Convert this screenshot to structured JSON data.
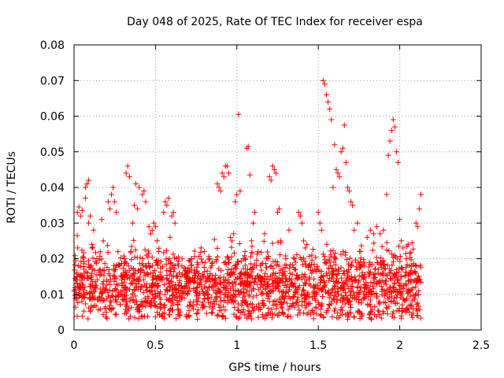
{
  "chart_data": {
    "type": "scatter",
    "title": "Day 048 of 2025, Rate Of TEC Index for receiver espa",
    "xlabel": "GPS time / hours",
    "ylabel": "ROTI / TECUs",
    "xlim": [
      0,
      2.5
    ],
    "ylim": [
      0,
      0.08
    ],
    "x_ticks": [
      {
        "value": 0,
        "label": "0"
      },
      {
        "value": 0.5,
        "label": "0.5"
      },
      {
        "value": 1,
        "label": "1"
      },
      {
        "value": 1.5,
        "label": "1.5"
      },
      {
        "value": 2,
        "label": "2"
      },
      {
        "value": 2.5,
        "label": "2.5"
      }
    ],
    "y_ticks": [
      {
        "value": 0,
        "label": "0"
      },
      {
        "value": 0.01,
        "label": "0.01"
      },
      {
        "value": 0.02,
        "label": "0.02"
      },
      {
        "value": 0.03,
        "label": "0.03"
      },
      {
        "value": 0.04,
        "label": "0.04"
      },
      {
        "value": 0.05,
        "label": "0.05"
      },
      {
        "value": 0.06,
        "label": "0.06"
      },
      {
        "value": 0.07,
        "label": "0.07"
      },
      {
        "value": 0.08,
        "label": "0.08"
      }
    ],
    "grid": true,
    "marker": "+",
    "series": [
      {
        "name": "ROTI",
        "color": "#ff0000",
        "points": [
          [
            0.0,
            0.011
          ],
          [
            0.01,
            0.0195
          ],
          [
            0.01,
            0.014
          ],
          [
            0.02,
            0.0265
          ],
          [
            0.02,
            0.033
          ],
          [
            0.03,
            0.0345
          ],
          [
            0.03,
            0.012
          ],
          [
            0.04,
            0.032
          ],
          [
            0.05,
            0.0335
          ],
          [
            0.05,
            0.015
          ],
          [
            0.06,
            0.009
          ],
          [
            0.07,
            0.037
          ],
          [
            0.07,
            0.04
          ],
          [
            0.08,
            0.041
          ],
          [
            0.09,
            0.042
          ],
          [
            0.09,
            0.03
          ],
          [
            0.1,
            0.032
          ],
          [
            0.11,
            0.024
          ],
          [
            0.12,
            0.028
          ],
          [
            0.13,
            0.012
          ],
          [
            0.14,
            0.02
          ],
          [
            0.15,
            0.009
          ],
          [
            0.16,
            0.017
          ],
          [
            0.17,
            0.031
          ],
          [
            0.18,
            0.025
          ],
          [
            0.19,
            0.006
          ],
          [
            0.2,
            0.014
          ],
          [
            0.21,
            0.036
          ],
          [
            0.22,
            0.034
          ],
          [
            0.23,
            0.038
          ],
          [
            0.24,
            0.04
          ],
          [
            0.25,
            0.036
          ],
          [
            0.26,
            0.033
          ],
          [
            0.27,
            0.022
          ],
          [
            0.28,
            0.018
          ],
          [
            0.29,
            0.01
          ],
          [
            0.3,
            0.015
          ],
          [
            0.31,
            0.02
          ],
          [
            0.32,
            0.044
          ],
          [
            0.33,
            0.046
          ],
          [
            0.34,
            0.043
          ],
          [
            0.35,
            0.022
          ],
          [
            0.36,
            0.03
          ],
          [
            0.37,
            0.035
          ],
          [
            0.38,
            0.041
          ],
          [
            0.39,
            0.034
          ],
          [
            0.4,
            0.04
          ],
          [
            0.41,
            0.012
          ],
          [
            0.42,
            0.038
          ],
          [
            0.43,
            0.039
          ],
          [
            0.44,
            0.036
          ],
          [
            0.45,
            0.016
          ],
          [
            0.46,
            0.029
          ],
          [
            0.47,
            0.027
          ],
          [
            0.48,
            0.028
          ],
          [
            0.49,
            0.03
          ],
          [
            0.5,
            0.029
          ],
          [
            0.51,
            0.025
          ],
          [
            0.52,
            0.022
          ],
          [
            0.53,
            0.006
          ],
          [
            0.54,
            0.014
          ],
          [
            0.55,
            0.033
          ],
          [
            0.56,
            0.036
          ],
          [
            0.57,
            0.035
          ],
          [
            0.58,
            0.037
          ],
          [
            0.59,
            0.026
          ],
          [
            0.6,
            0.032
          ],
          [
            0.61,
            0.033
          ],
          [
            0.62,
            0.03
          ],
          [
            0.63,
            0.02
          ],
          [
            0.64,
            0.018
          ],
          [
            0.65,
            0.009
          ],
          [
            0.68,
            0.012
          ],
          [
            0.7,
            0.015
          ],
          [
            0.72,
            0.02
          ],
          [
            0.74,
            0.017
          ],
          [
            0.76,
            0.008
          ],
          [
            0.78,
            0.023
          ],
          [
            0.8,
            0.022
          ],
          [
            0.82,
            0.011
          ],
          [
            0.85,
            0.019
          ],
          [
            0.87,
            0.014
          ],
          [
            0.88,
            0.041
          ],
          [
            0.89,
            0.04
          ],
          [
            0.9,
            0.039
          ],
          [
            0.91,
            0.044
          ],
          [
            0.92,
            0.043
          ],
          [
            0.93,
            0.046
          ],
          [
            0.94,
            0.046
          ],
          [
            0.95,
            0.044
          ],
          [
            0.96,
            0.026
          ],
          [
            0.97,
            0.025
          ],
          [
            0.98,
            0.027
          ],
          [
            0.99,
            0.036
          ],
          [
            1.0,
            0.038
          ],
          [
            1.01,
            0.0605
          ],
          [
            1.02,
            0.039
          ],
          [
            1.03,
            0.013
          ],
          [
            1.04,
            0.02
          ],
          [
            1.05,
            0.022
          ],
          [
            1.06,
            0.051
          ],
          [
            1.07,
            0.0515
          ],
          [
            1.08,
            0.0435
          ],
          [
            1.09,
            0.025
          ],
          [
            1.1,
            0.03
          ],
          [
            1.11,
            0.033
          ],
          [
            1.12,
            0.018
          ],
          [
            1.13,
            0.022
          ],
          [
            1.14,
            0.015
          ],
          [
            1.15,
            0.01
          ],
          [
            1.17,
            0.027
          ],
          [
            1.19,
            0.02
          ],
          [
            1.2,
            0.043
          ],
          [
            1.21,
            0.042
          ],
          [
            1.22,
            0.046
          ],
          [
            1.23,
            0.045
          ],
          [
            1.24,
            0.044
          ],
          [
            1.25,
            0.033
          ],
          [
            1.26,
            0.034
          ],
          [
            1.27,
            0.025
          ],
          [
            1.28,
            0.016
          ],
          [
            1.3,
            0.02
          ],
          [
            1.32,
            0.028
          ],
          [
            1.34,
            0.013
          ],
          [
            1.36,
            0.019
          ],
          [
            1.38,
            0.033
          ],
          [
            1.39,
            0.032
          ],
          [
            1.4,
            0.03
          ],
          [
            1.41,
            0.025
          ],
          [
            1.42,
            0.023
          ],
          [
            1.43,
            0.024
          ],
          [
            1.44,
            0.018
          ],
          [
            1.46,
            0.021
          ],
          [
            1.48,
            0.012
          ],
          [
            1.5,
            0.033
          ],
          [
            1.51,
            0.03
          ],
          [
            1.52,
            0.028
          ],
          [
            1.53,
            0.07
          ],
          [
            1.54,
            0.069
          ],
          [
            1.55,
            0.066
          ],
          [
            1.56,
            0.064
          ],
          [
            1.57,
            0.062
          ],
          [
            1.58,
            0.059
          ],
          [
            1.59,
            0.04
          ],
          [
            1.6,
            0.052
          ],
          [
            1.61,
            0.045
          ],
          [
            1.62,
            0.044
          ],
          [
            1.63,
            0.043
          ],
          [
            1.64,
            0.05
          ],
          [
            1.65,
            0.051
          ],
          [
            1.66,
            0.0575
          ],
          [
            1.67,
            0.047
          ],
          [
            1.68,
            0.04
          ],
          [
            1.69,
            0.039
          ],
          [
            1.7,
            0.036
          ],
          [
            1.71,
            0.035
          ],
          [
            1.72,
            0.028
          ],
          [
            1.74,
            0.03
          ],
          [
            1.76,
            0.022
          ],
          [
            1.78,
            0.018
          ],
          [
            1.8,
            0.026
          ],
          [
            1.82,
            0.028
          ],
          [
            1.84,
            0.027
          ],
          [
            1.86,
            0.029
          ],
          [
            1.88,
            0.027
          ],
          [
            1.9,
            0.028
          ],
          [
            1.92,
            0.038
          ],
          [
            1.93,
            0.049
          ],
          [
            1.94,
            0.053
          ],
          [
            1.95,
            0.056
          ],
          [
            1.96,
            0.059
          ],
          [
            1.97,
            0.057
          ],
          [
            1.98,
            0.05
          ],
          [
            1.99,
            0.047
          ],
          [
            2.0,
            0.031
          ],
          [
            2.01,
            0.025
          ],
          [
            2.02,
            0.023
          ],
          [
            2.04,
            0.02
          ],
          [
            2.06,
            0.018
          ],
          [
            2.08,
            0.016
          ],
          [
            2.1,
            0.03
          ],
          [
            2.11,
            0.029
          ],
          [
            2.12,
            0.034
          ],
          [
            2.13,
            0.038
          ]
        ],
        "dense_band": {
          "x_range": [
            0.0,
            2.13
          ],
          "y_mean": 0.0125,
          "y_spread": 0.0085,
          "y_floor": 0.003,
          "count": 1900
        }
      }
    ]
  }
}
